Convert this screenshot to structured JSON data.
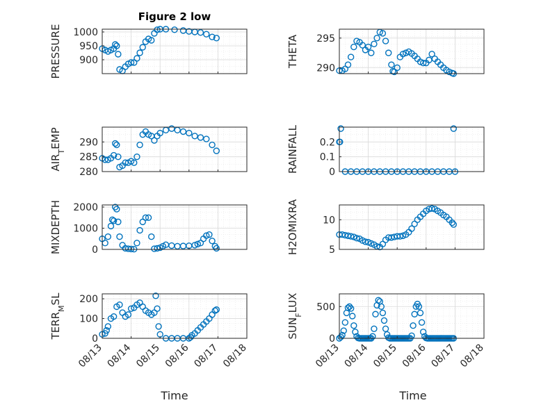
{
  "figure_title": "Figure 2 low",
  "x_axis_label": "Time",
  "x_tick_labels": [
    "08/13",
    "08/14",
    "08/15",
    "08/16",
    "08/17",
    "08/18"
  ],
  "colors": {
    "marker": "#0072BD",
    "axes": "#262626",
    "grid": "#d9d9d9"
  },
  "chart_data": [
    {
      "type": "scatter",
      "title": "Figure 2 low",
      "ylabel": "PRESSURE",
      "ylim": [
        850,
        1010
      ],
      "yticks": [
        900,
        950,
        1000
      ],
      "xlim": [
        0,
        5
      ],
      "grid": true,
      "x": [
        0,
        0.1,
        0.2,
        0.3,
        0.4,
        0.45,
        0.5,
        0.55,
        0.6,
        0.7,
        0.8,
        0.9,
        1.0,
        1.1,
        1.2,
        1.3,
        1.4,
        1.5,
        1.6,
        1.7,
        1.8,
        1.9,
        2.0,
        2.2,
        2.5,
        2.8,
        3.0,
        3.2,
        3.4,
        3.6,
        3.8,
        3.95
      ],
      "y": [
        940,
        935,
        930,
        935,
        940,
        955,
        950,
        920,
        865,
        860,
        875,
        885,
        890,
        890,
        905,
        925,
        945,
        965,
        975,
        970,
        995,
        1008,
        1010,
        1010,
        1008,
        1005,
        1002,
        1000,
        998,
        992,
        982,
        978
      ]
    },
    {
      "type": "scatter",
      "ylabel": "THETA",
      "ylim": [
        289,
        296.5
      ],
      "yticks": [
        290,
        295
      ],
      "xlim": [
        0,
        5
      ],
      "grid": true,
      "x": [
        0,
        0.1,
        0.2,
        0.3,
        0.4,
        0.5,
        0.6,
        0.7,
        0.8,
        0.9,
        1.0,
        1.1,
        1.2,
        1.3,
        1.4,
        1.5,
        1.6,
        1.7,
        1.8,
        1.85,
        1.9,
        2.0,
        2.1,
        2.2,
        2.3,
        2.4,
        2.5,
        2.6,
        2.7,
        2.8,
        2.9,
        3.0,
        3.1,
        3.2,
        3.3,
        3.4,
        3.5,
        3.6,
        3.7,
        3.8,
        3.9,
        3.95
      ],
      "y": [
        289.5,
        289.5,
        289.8,
        290.5,
        291.8,
        293.5,
        294.5,
        294.3,
        293.8,
        293.0,
        293.5,
        292.5,
        294.0,
        295.0,
        296.0,
        295.8,
        294.5,
        292.5,
        290.5,
        289.4,
        289.3,
        290.0,
        291.8,
        292.3,
        292.5,
        292.7,
        292.4,
        292.0,
        291.5,
        291.0,
        290.8,
        290.8,
        291.3,
        292.3,
        291.5,
        291.0,
        290.5,
        290.0,
        289.6,
        289.3,
        289.1,
        289.0
      ]
    },
    {
      "type": "scatter",
      "ylabel": "AIR_TEMP",
      "ylim": [
        280,
        295
      ],
      "yticks": [
        280,
        285,
        290
      ],
      "xlim": [
        0,
        5
      ],
      "grid": true,
      "x": [
        0,
        0.1,
        0.2,
        0.3,
        0.4,
        0.45,
        0.5,
        0.55,
        0.6,
        0.7,
        0.8,
        0.9,
        1.0,
        1.1,
        1.2,
        1.3,
        1.4,
        1.5,
        1.6,
        1.7,
        1.8,
        1.9,
        2.0,
        2.2,
        2.4,
        2.6,
        2.8,
        3.0,
        3.2,
        3.4,
        3.6,
        3.8,
        3.95
      ],
      "y": [
        284.5,
        284.0,
        284.0,
        284.5,
        285.5,
        289.5,
        289.0,
        285.0,
        281.5,
        282.0,
        283.0,
        283.0,
        283.5,
        283.0,
        285.0,
        289.0,
        292.5,
        293.5,
        292.5,
        292.0,
        290.5,
        292.0,
        293.0,
        294.0,
        294.5,
        294.0,
        293.5,
        293.0,
        292.0,
        291.5,
        291.0,
        289.0,
        287.0
      ]
    },
    {
      "type": "scatter",
      "ylabel": "RAINFALL",
      "ylim": [
        0,
        0.3
      ],
      "yticks": [
        0,
        0.1,
        0.2
      ],
      "xlim": [
        0,
        5
      ],
      "grid": true,
      "x": [
        0,
        0.02,
        0.05,
        0.2,
        0.4,
        0.6,
        0.8,
        1.0,
        1.2,
        1.4,
        1.6,
        1.8,
        2.0,
        2.2,
        2.4,
        2.6,
        2.8,
        3.0,
        3.2,
        3.4,
        3.6,
        3.8,
        3.95,
        4.0
      ],
      "y": [
        0.2,
        0.2,
        0.29,
        0,
        0,
        0,
        0,
        0,
        0,
        0,
        0,
        0,
        0,
        0,
        0,
        0,
        0,
        0,
        0,
        0,
        0,
        0,
        0.29,
        0
      ]
    },
    {
      "type": "scatter",
      "ylabel": "MIXDEPTH",
      "ylim": [
        0,
        2100
      ],
      "yticks": [
        0,
        1000,
        2000
      ],
      "xlim": [
        0,
        5
      ],
      "grid": true,
      "x": [
        0,
        0.1,
        0.2,
        0.3,
        0.35,
        0.4,
        0.45,
        0.5,
        0.55,
        0.6,
        0.7,
        0.8,
        0.9,
        1.0,
        1.1,
        1.2,
        1.3,
        1.4,
        1.5,
        1.6,
        1.7,
        1.8,
        1.9,
        2.0,
        2.1,
        2.2,
        2.4,
        2.6,
        2.8,
        3.0,
        3.2,
        3.3,
        3.4,
        3.5,
        3.6,
        3.7,
        3.8,
        3.9,
        3.95
      ],
      "y": [
        500,
        300,
        600,
        1100,
        1400,
        1350,
        2000,
        1900,
        1300,
        600,
        200,
        50,
        30,
        20,
        10,
        300,
        900,
        1300,
        1500,
        1500,
        600,
        30,
        50,
        80,
        150,
        220,
        180,
        150,
        160,
        170,
        200,
        250,
        300,
        500,
        650,
        700,
        400,
        150,
        50
      ]
    },
    {
      "type": "scatter",
      "ylabel": "H2OMIXRA",
      "ylim": [
        5,
        12.5
      ],
      "yticks": [
        5,
        10
      ],
      "xlim": [
        0,
        5
      ],
      "grid": true,
      "x": [
        0,
        0.1,
        0.2,
        0.3,
        0.4,
        0.5,
        0.6,
        0.7,
        0.8,
        0.9,
        1.0,
        1.1,
        1.2,
        1.3,
        1.4,
        1.5,
        1.6,
        1.7,
        1.8,
        1.9,
        2.0,
        2.1,
        2.2,
        2.3,
        2.4,
        2.5,
        2.6,
        2.7,
        2.8,
        2.9,
        3.0,
        3.1,
        3.2,
        3.3,
        3.4,
        3.5,
        3.6,
        3.7,
        3.8,
        3.9,
        3.95
      ],
      "y": [
        7.5,
        7.5,
        7.4,
        7.3,
        7.2,
        7.1,
        6.9,
        6.8,
        6.5,
        6.3,
        6.2,
        6.0,
        5.8,
        5.5,
        5.4,
        5.9,
        6.6,
        7.0,
        7.0,
        7.1,
        7.2,
        7.2,
        7.3,
        7.5,
        7.9,
        8.5,
        9.3,
        10.0,
        10.5,
        11.0,
        11.5,
        11.8,
        11.9,
        11.8,
        11.5,
        11.2,
        10.8,
        10.5,
        10.0,
        9.5,
        9.2
      ]
    },
    {
      "type": "scatter",
      "ylabel": "TERR_MSL",
      "ylim": [
        0,
        225
      ],
      "yticks": [
        0,
        100,
        200
      ],
      "xlim": [
        0,
        5
      ],
      "grid": true,
      "x": [
        0,
        0.1,
        0.15,
        0.2,
        0.3,
        0.4,
        0.5,
        0.6,
        0.7,
        0.8,
        0.9,
        1.0,
        1.1,
        1.2,
        1.3,
        1.4,
        1.5,
        1.6,
        1.7,
        1.8,
        1.85,
        1.9,
        1.95,
        2.0,
        2.2,
        2.4,
        2.6,
        2.8,
        3.0,
        3.05,
        3.1,
        3.2,
        3.3,
        3.4,
        3.5,
        3.6,
        3.7,
        3.8,
        3.9,
        3.95
      ],
      "y": [
        20,
        25,
        40,
        60,
        100,
        110,
        160,
        170,
        130,
        110,
        120,
        150,
        155,
        170,
        180,
        160,
        140,
        130,
        120,
        130,
        215,
        150,
        60,
        20,
        0,
        0,
        0,
        0,
        0,
        5,
        15,
        25,
        40,
        55,
        70,
        85,
        100,
        120,
        140,
        145
      ]
    },
    {
      "type": "scatter",
      "ylabel": "SUN_FLUX",
      "ylim": [
        0,
        700
      ],
      "yticks": [
        0,
        500
      ],
      "xlim": [
        0,
        5
      ],
      "grid": true,
      "x": [
        0,
        0.05,
        0.1,
        0.15,
        0.2,
        0.25,
        0.3,
        0.35,
        0.4,
        0.45,
        0.5,
        0.55,
        0.6,
        0.65,
        0.7,
        0.75,
        0.8,
        0.85,
        0.9,
        0.95,
        1.0,
        1.05,
        1.1,
        1.15,
        1.2,
        1.25,
        1.3,
        1.35,
        1.4,
        1.45,
        1.5,
        1.55,
        1.6,
        1.65,
        1.7,
        1.75,
        1.8,
        1.85,
        1.9,
        1.95,
        2.0,
        2.05,
        2.1,
        2.15,
        2.2,
        2.25,
        2.3,
        2.35,
        2.4,
        2.45,
        2.5,
        2.55,
        2.6,
        2.65,
        2.7,
        2.75,
        2.8,
        2.85,
        2.9,
        2.95,
        3.0,
        3.05,
        3.1,
        3.15,
        3.2,
        3.25,
        3.3,
        3.35,
        3.4,
        3.45,
        3.5,
        3.55,
        3.6,
        3.65,
        3.7,
        3.75,
        3.8,
        3.85,
        3.9,
        3.95
      ],
      "y": [
        0,
        20,
        50,
        120,
        250,
        400,
        480,
        500,
        470,
        350,
        200,
        100,
        30,
        5,
        0,
        0,
        0,
        0,
        0,
        0,
        0,
        0,
        0,
        30,
        150,
        380,
        520,
        600,
        580,
        500,
        400,
        280,
        150,
        60,
        10,
        0,
        0,
        0,
        0,
        0,
        0,
        0,
        0,
        0,
        0,
        0,
        0,
        0,
        0,
        0,
        40,
        200,
        380,
        500,
        540,
        500,
        400,
        250,
        100,
        30,
        5,
        0,
        0,
        0,
        0,
        0,
        0,
        0,
        0,
        0,
        0,
        0,
        0,
        0,
        0,
        0,
        0,
        0,
        0,
        0
      ]
    }
  ]
}
